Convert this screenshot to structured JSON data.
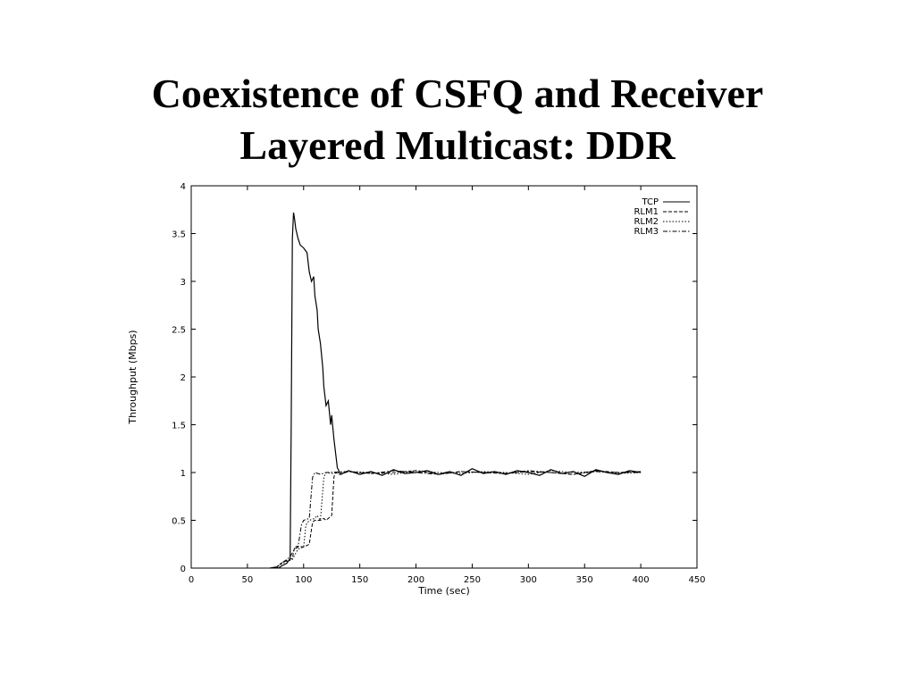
{
  "slide": {
    "title_line1": "Coexistence of CSFQ and Receiver",
    "title_line2": "Layered Multicast: DDR"
  },
  "chart_data": {
    "type": "line",
    "title": "",
    "xlabel": "Time (sec)",
    "ylabel": "Throughput (Mbps)",
    "xlim": [
      0,
      450
    ],
    "ylim": [
      0,
      4
    ],
    "xticks": [
      0,
      50,
      100,
      150,
      200,
      250,
      300,
      350,
      400,
      450
    ],
    "yticks": [
      0,
      0.5,
      1,
      1.5,
      2,
      2.5,
      3,
      3.5,
      4
    ],
    "ytick_labels": [
      "0",
      "0.5",
      "1",
      "1.5",
      "2",
      "2.5",
      "3",
      "3.5",
      "4"
    ],
    "grid": false,
    "legend_position": "top-right",
    "series": [
      {
        "name": "TCP",
        "style": "solid",
        "x": [
          70,
          75,
          78,
          80,
          85,
          88,
          89,
          90,
          91,
          92,
          93,
          95,
          97,
          100,
          103,
          105,
          107,
          109,
          110,
          112,
          113,
          115,
          117,
          118,
          120,
          122,
          124,
          125,
          127,
          128,
          130,
          133,
          140,
          150,
          160,
          170,
          180,
          190,
          200,
          210,
          220,
          230,
          240,
          250,
          260,
          270,
          280,
          290,
          300,
          310,
          320,
          330,
          340,
          350,
          360,
          370,
          380,
          390,
          400
        ],
        "y": [
          0,
          0.01,
          0,
          0.02,
          0.05,
          0.1,
          1.5,
          3.45,
          3.72,
          3.65,
          3.55,
          3.45,
          3.38,
          3.35,
          3.3,
          3.1,
          3.0,
          3.05,
          2.85,
          2.7,
          2.5,
          2.35,
          2.1,
          1.9,
          1.7,
          1.75,
          1.5,
          1.6,
          1.35,
          1.25,
          1.05,
          0.98,
          1.02,
          0.98,
          1.01,
          0.97,
          1.03,
          0.99,
          1.0,
          1.02,
          0.98,
          1.01,
          0.97,
          1.04,
          0.99,
          1.01,
          0.98,
          1.02,
          1.0,
          0.97,
          1.03,
          0.99,
          1.01,
          0.96,
          1.03,
          1.0,
          0.98,
          1.02,
          1.0
        ]
      },
      {
        "name": "RLM1",
        "style": "dashed",
        "x": [
          75,
          80,
          85,
          90,
          92,
          95,
          100,
          105,
          108,
          110,
          115,
          118,
          120,
          125,
          127,
          128,
          132,
          140,
          160,
          180,
          200,
          220,
          240,
          260,
          280,
          300,
          320,
          340,
          360,
          380,
          400
        ],
        "y": [
          0,
          0.05,
          0.08,
          0.1,
          0.22,
          0.23,
          0.22,
          0.25,
          0.48,
          0.5,
          0.5,
          0.52,
          0.5,
          0.55,
          0.95,
          1.0,
          0.98,
          1.01,
          0.99,
          1.0,
          1.02,
          0.98,
          1.01,
          1.0,
          0.99,
          1.01,
          1.0,
          0.98,
          1.02,
          1.0,
          1.01
        ]
      },
      {
        "name": "RLM2",
        "style": "dotted",
        "x": [
          75,
          80,
          85,
          90,
          95,
          100,
          102,
          105,
          110,
          112,
          115,
          118,
          120,
          125,
          140,
          160,
          180,
          200,
          220,
          240,
          260,
          280,
          300,
          320,
          340,
          360,
          380,
          400
        ],
        "y": [
          0,
          0.04,
          0.07,
          0.09,
          0.2,
          0.22,
          0.45,
          0.5,
          0.52,
          0.55,
          0.5,
          0.95,
          1.0,
          0.99,
          1.01,
          1.0,
          0.98,
          1.02,
          1.0,
          0.99,
          1.01,
          1.0,
          0.98,
          1.02,
          1.0,
          1.01,
          0.99,
          1.0
        ]
      },
      {
        "name": "RLM3",
        "style": "dashdot",
        "x": [
          75,
          80,
          85,
          88,
          92,
          95,
          98,
          100,
          105,
          108,
          110,
          115,
          120,
          140,
          160,
          180,
          200,
          220,
          240,
          260,
          280,
          300,
          320,
          340,
          360,
          380,
          400
        ],
        "y": [
          0,
          0.05,
          0.09,
          0.12,
          0.2,
          0.22,
          0.45,
          0.5,
          0.52,
          0.95,
          1.0,
          0.98,
          1.0,
          1.01,
          0.99,
          1.02,
          1.0,
          0.98,
          1.01,
          1.0,
          0.99,
          1.02,
          1.0,
          0.98,
          1.01,
          1.0,
          1.0
        ]
      }
    ]
  }
}
